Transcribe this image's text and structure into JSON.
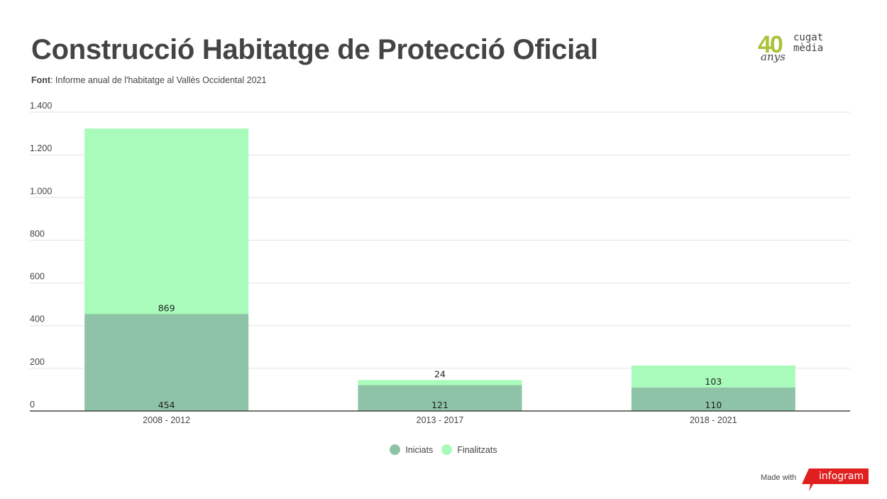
{
  "title": "Construcció Habitatge de Protecció Oficial",
  "source": {
    "label": "Font",
    "text": ": Informe anual de l'habitatge al Vallès Occidental 2021"
  },
  "logo": {
    "number": "40",
    "anys": "anys",
    "brand_line1": "cugat",
    "brand_line2": "mèdia"
  },
  "colors": {
    "iniciats": "#8ec3a7",
    "finalitzats": "#a8fbba",
    "accent": "#a8c23a",
    "infogram": "#e0201f"
  },
  "chart_data": {
    "type": "bar",
    "stacked": true,
    "categories": [
      "2008 - 2012",
      "2013 - 2017",
      "2018 - 2021"
    ],
    "series": [
      {
        "name": "Iniciats",
        "values": [
          454,
          121,
          110
        ],
        "color": "#8ec3a7"
      },
      {
        "name": "Finalitzats",
        "values": [
          869,
          24,
          103
        ],
        "color": "#a8fbba"
      }
    ],
    "ylim": [
      0,
      1400
    ],
    "yticks": [
      0,
      200,
      400,
      600,
      800,
      1000,
      1200,
      1400
    ],
    "ytick_labels": [
      "0",
      "200",
      "400",
      "600",
      "800",
      "1.000",
      "1.200",
      "1.400"
    ],
    "grid": true,
    "legend": "bottom-center"
  },
  "footer": {
    "made_with": "Made with",
    "brand": "infogram"
  }
}
